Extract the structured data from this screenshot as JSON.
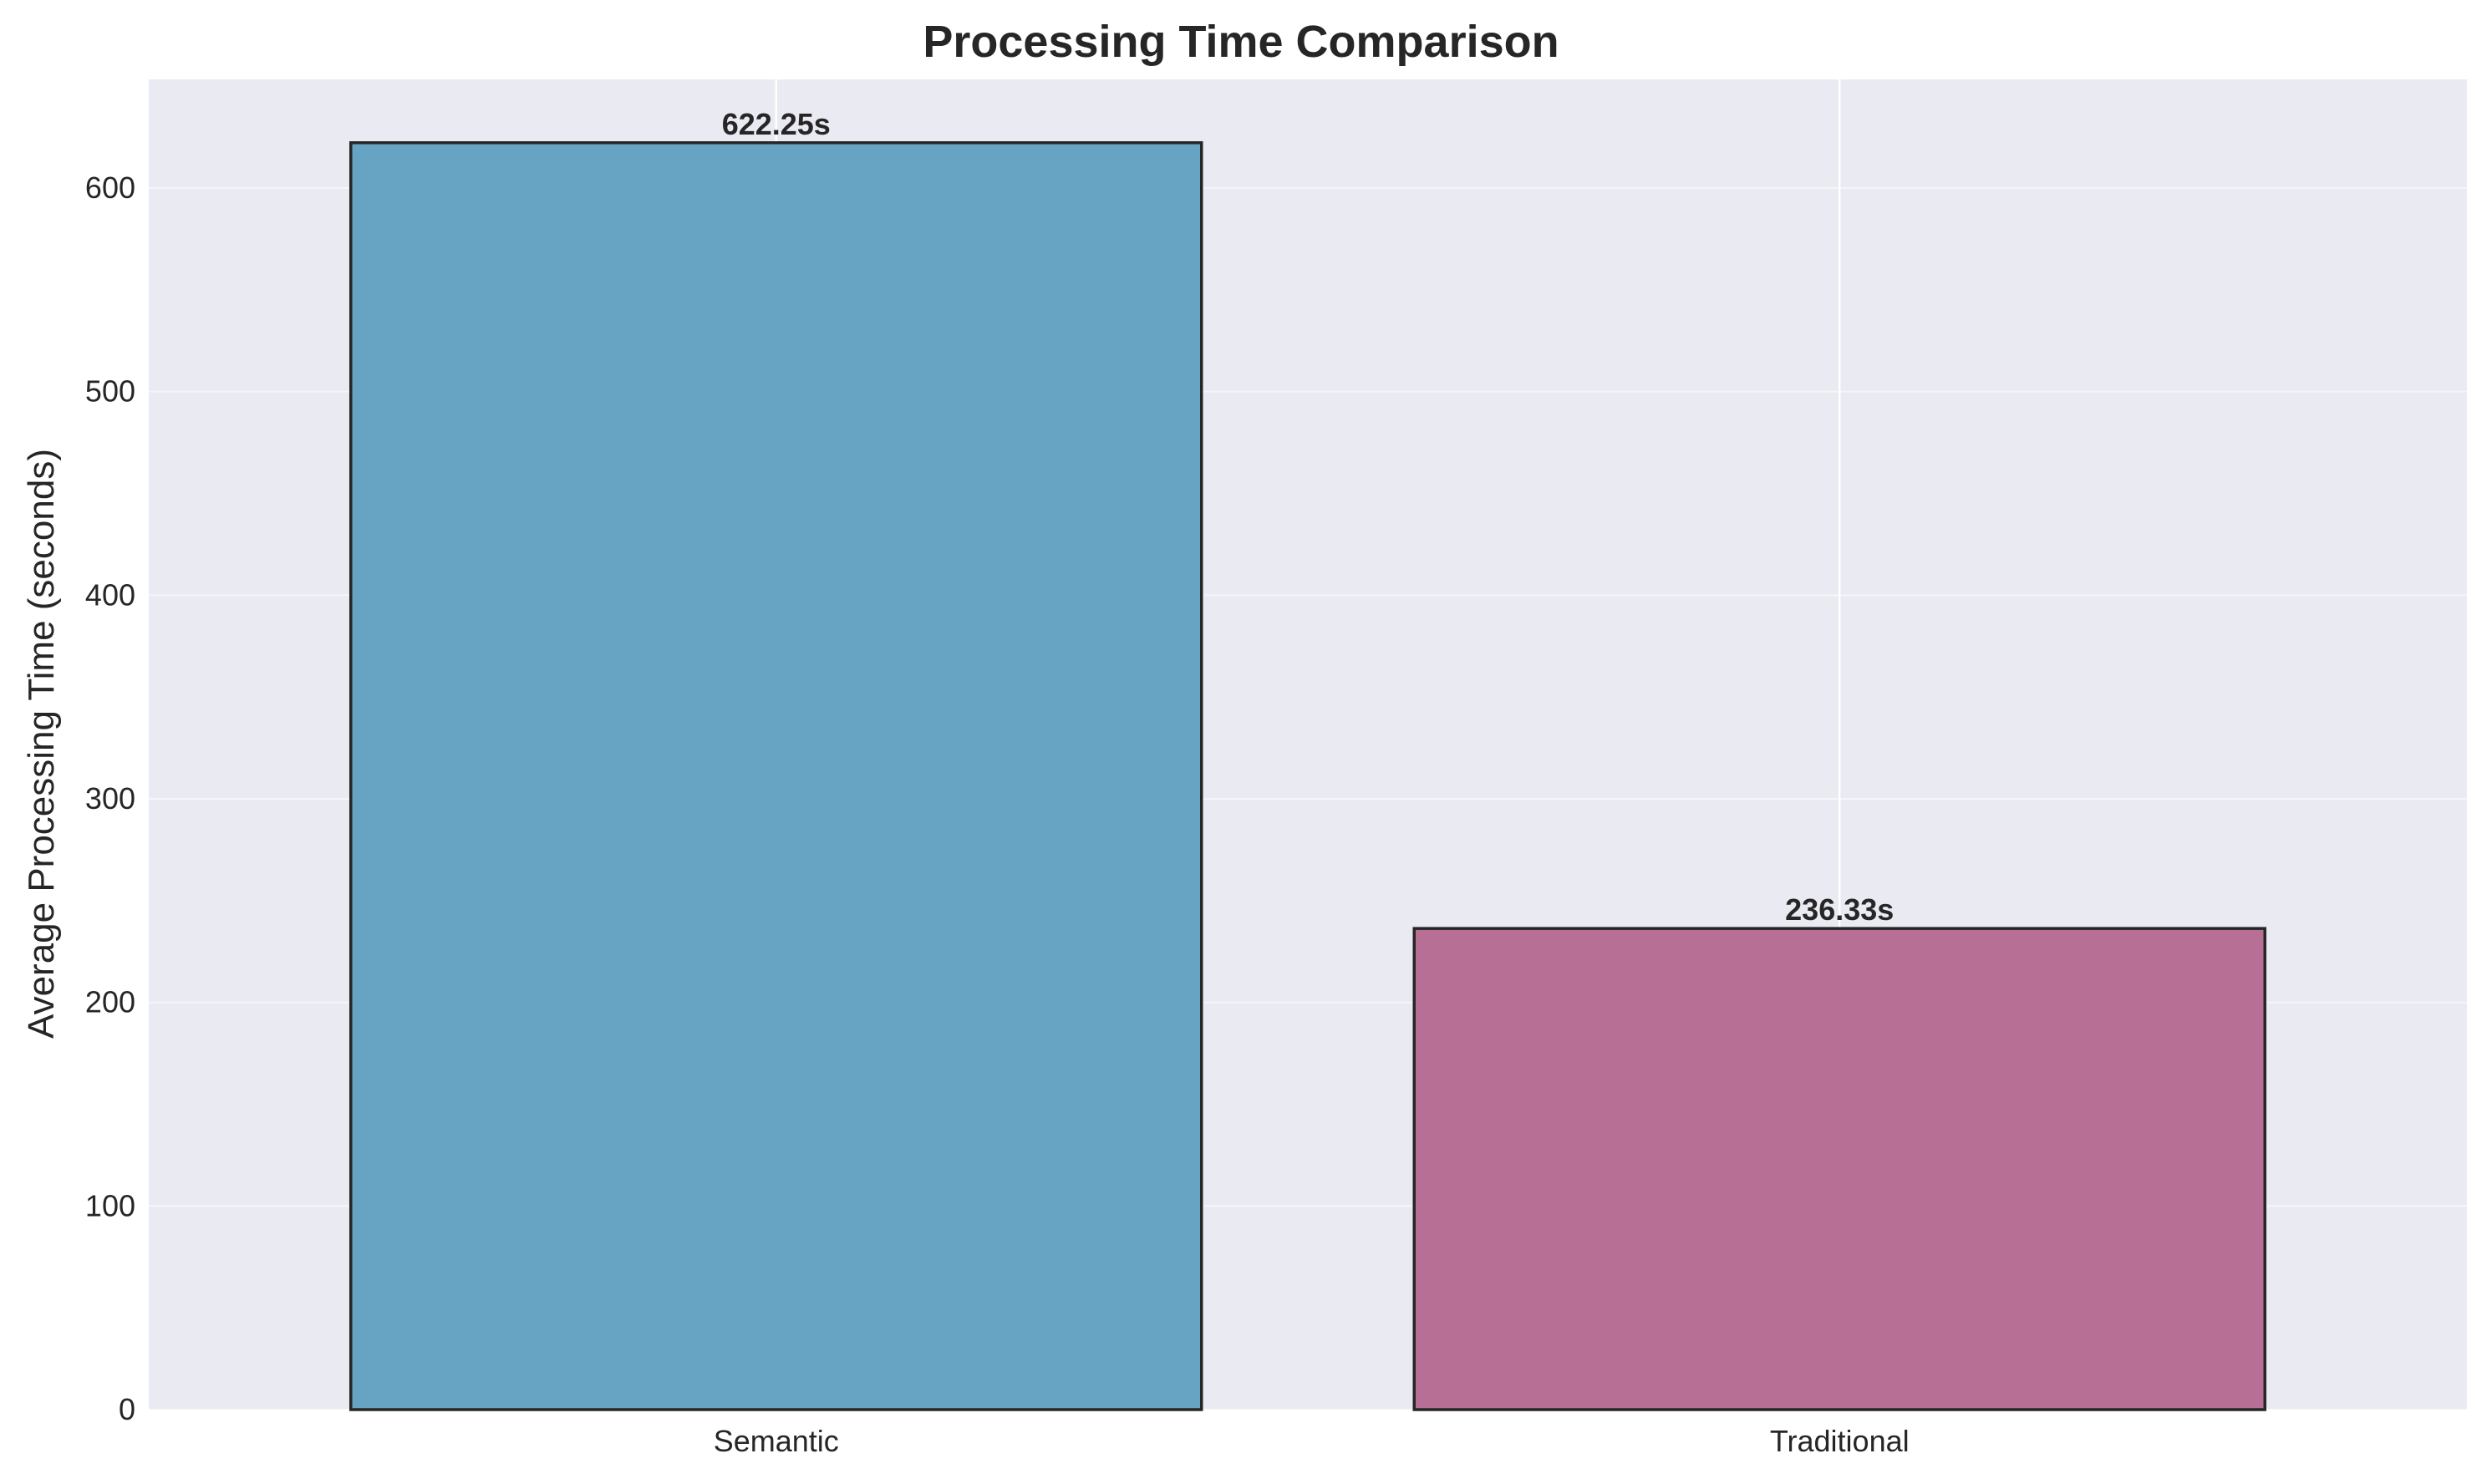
{
  "chart_data": {
    "type": "bar",
    "title": "Processing Time Comparison",
    "xlabel": "",
    "ylabel": "Average Processing Time (seconds)",
    "categories": [
      "Semantic",
      "Traditional"
    ],
    "values": [
      622.25,
      236.33
    ],
    "value_labels": [
      "622.25s",
      "236.33s"
    ],
    "ylim": [
      0,
      653.36
    ],
    "yticks": [
      0,
      100,
      200,
      300,
      400,
      500,
      600
    ],
    "ytick_labels": [
      "0",
      "100",
      "200",
      "300",
      "400",
      "500",
      "600"
    ],
    "grid": true,
    "colors": {
      "plot_background": "#eaeaf2",
      "grid": "#ffffff",
      "bar_edge": "#262626",
      "bars": [
        "#67a3c2",
        "#b76f95"
      ]
    }
  }
}
